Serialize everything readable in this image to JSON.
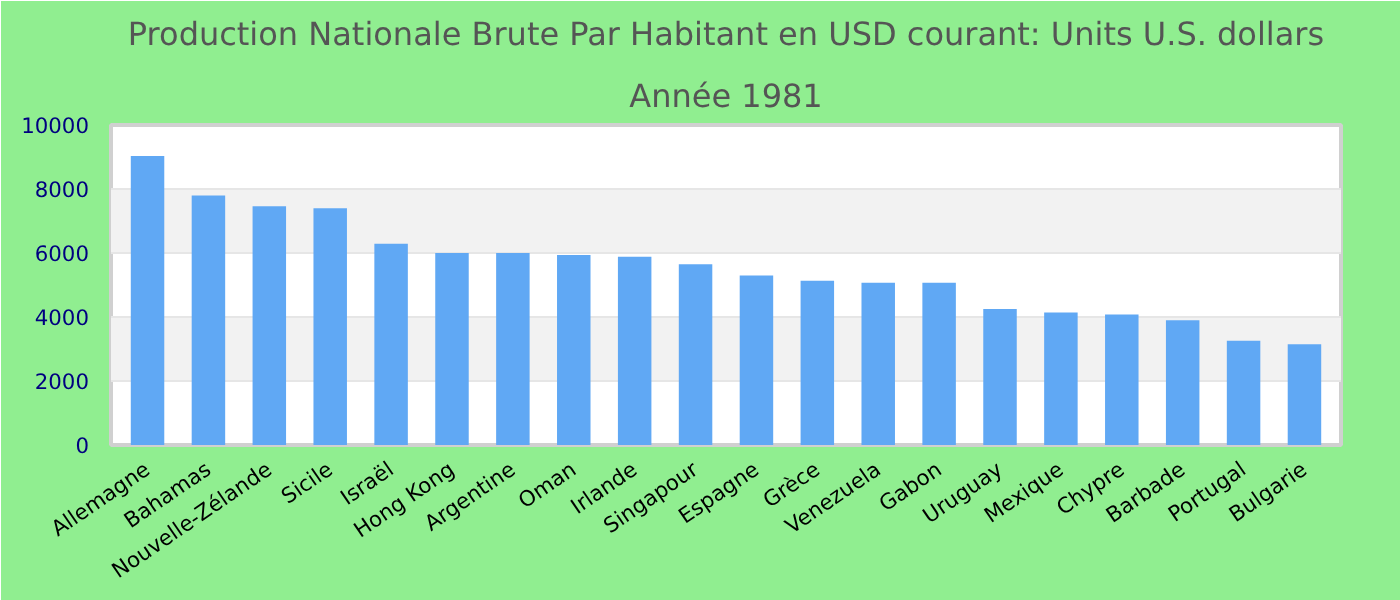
{
  "chart_data": {
    "type": "bar",
    "title": "Production Nationale Brute Par Habitant en USD courant: Units U.S. dollars",
    "subtitle": "Année 1981",
    "categories": [
      "Allemagne",
      "Bahamas",
      "Nouvelle-Zélande",
      "Sicile",
      "Israël",
      "Hong Kong",
      "Argentine",
      "Oman",
      "Irlande",
      "Singapour",
      "Espagne",
      "Grèce",
      "Venezuela",
      "Gabon",
      "Uruguay",
      "Mexique",
      "Chypre",
      "Barbade",
      "Portugal",
      "Bulgarie"
    ],
    "values": [
      9030,
      7800,
      7460,
      7400,
      6290,
      6000,
      6000,
      5940,
      5880,
      5650,
      5300,
      5130,
      5070,
      5070,
      4250,
      4140,
      4080,
      3900,
      3260,
      3150
    ],
    "color": "#60a8f4",
    "ylim": [
      0,
      10000
    ],
    "yticks": [
      0,
      2000,
      4000,
      6000,
      8000,
      10000
    ],
    "grid": "y"
  }
}
